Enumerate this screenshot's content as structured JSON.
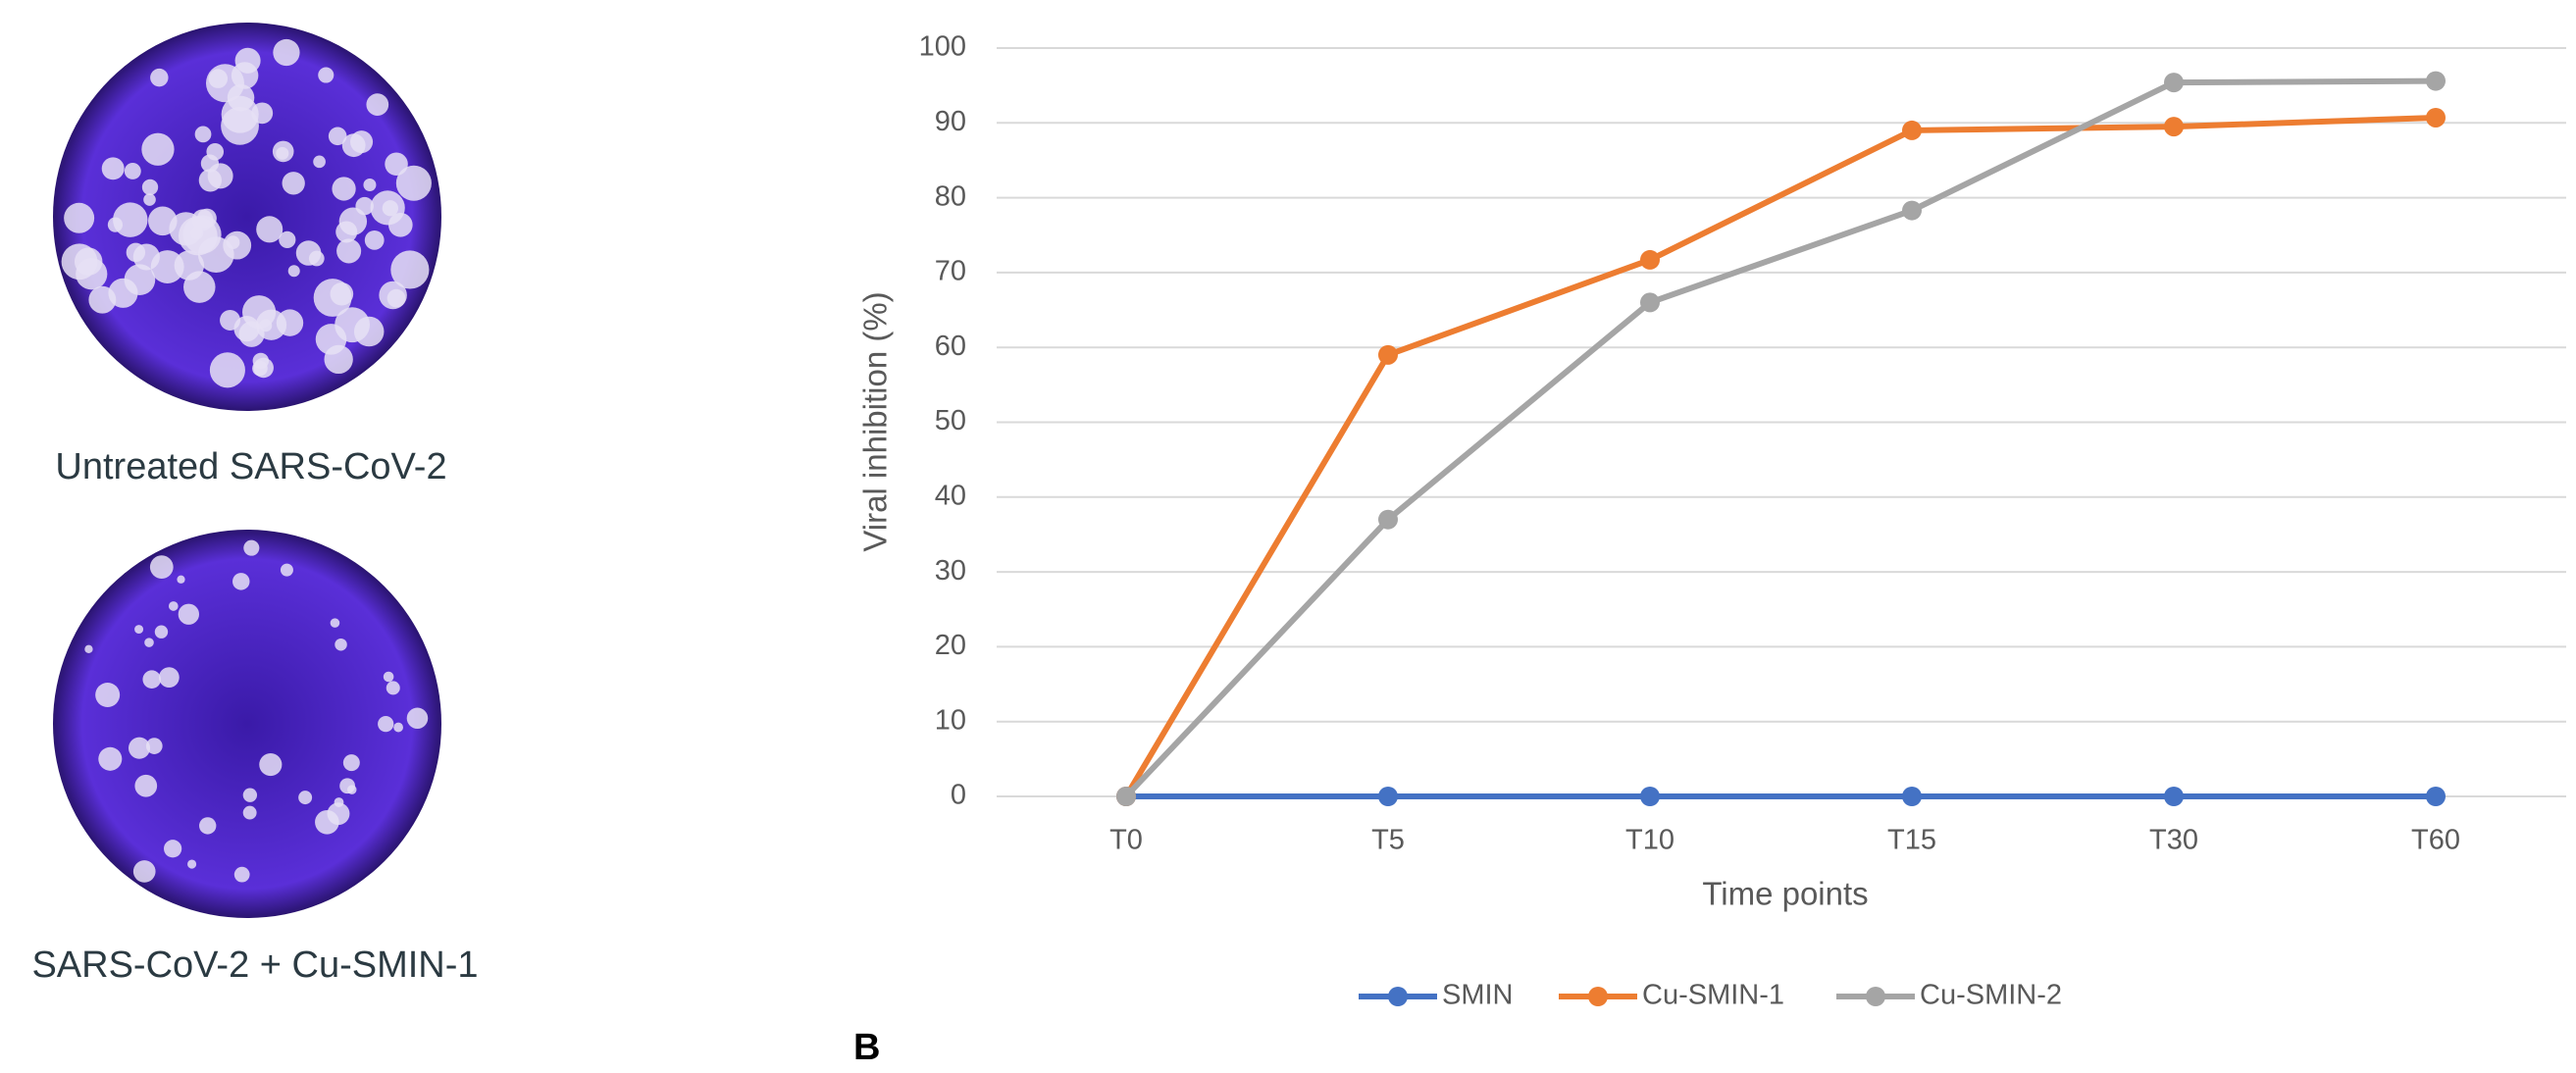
{
  "captions": [
    "Untreated SARS-CoV-2",
    "SARS-CoV-2 + Cu-SMIN-1"
  ],
  "panel_label": "B",
  "chart_data": {
    "type": "line",
    "x_label": "Time points",
    "y_label": "Viral inhibition (%)",
    "categories": [
      "T0",
      "T5",
      "T10",
      "T15",
      "T30",
      "T60"
    ],
    "series": [
      {
        "name": "SMIN",
        "color": "#4472c4",
        "values": [
          0,
          0,
          0,
          0,
          0,
          0
        ]
      },
      {
        "name": "Cu-SMIN-1",
        "color": "#ed7d31",
        "values": [
          0,
          59,
          71.7,
          89,
          89.5,
          90.7
        ]
      },
      {
        "name": "Cu-SMIN-2",
        "color": "#a5a5a5",
        "values": [
          0,
          37,
          66,
          78.3,
          95.4,
          95.6
        ]
      }
    ],
    "ylim": [
      0,
      100
    ],
    "yticks": [
      0,
      10,
      20,
      30,
      40,
      50,
      60,
      70,
      80,
      90,
      100
    ],
    "grid": true,
    "legend": "bottom"
  }
}
